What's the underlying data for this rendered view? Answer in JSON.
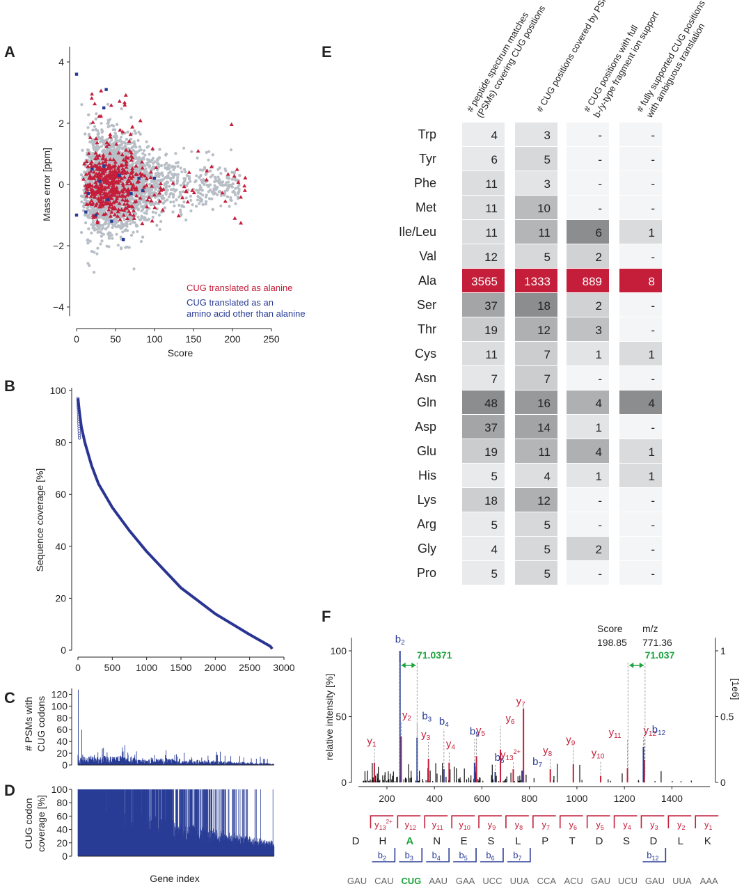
{
  "panels": {
    "A": "A",
    "B": "B",
    "C": "C",
    "D": "D",
    "E": "E",
    "F": "F"
  },
  "colors": {
    "grey_points": "#b8bec6",
    "alanine": "#c41e3a",
    "other": "#283c96",
    "blue_line": "#2a3593",
    "green": "#1aa33a",
    "red_line": "#c41e3a"
  },
  "chart_data": [
    {
      "id": "A",
      "type": "scatter",
      "xlabel": "Score",
      "ylabel": "Mass error [ppm]",
      "xlim": [
        0,
        250
      ],
      "ylim": [
        -4,
        4
      ],
      "xticks": [
        0,
        50,
        100,
        150,
        200,
        250
      ],
      "yticks": [
        -4,
        -2,
        0,
        2,
        4
      ],
      "legend": [
        "CUG translated as alanine",
        "CUG translated as an",
        "amino acid other than alanine"
      ],
      "legend_position": "bottom-right",
      "series": [
        {
          "name": "CUG translated as alanine",
          "marker": "triangle",
          "x_range": [
            5,
            225
          ],
          "y_range": [
            -2.0,
            3.3
          ],
          "approx_count": 500
        },
        {
          "name": "CUG translated as an amino acid other than alanine",
          "marker": "square",
          "points": [
            [
              0,
              3.6
            ],
            [
              35,
              2.5
            ],
            [
              38,
              3.1
            ],
            [
              0,
              -1.0
            ],
            [
              12,
              -0.9
            ],
            [
              25,
              -1.0
            ],
            [
              45,
              -1.2
            ],
            [
              20,
              0.5
            ],
            [
              35,
              0.6
            ],
            [
              55,
              0.3
            ],
            [
              70,
              -0.3
            ],
            [
              80,
              0.2
            ],
            [
              100,
              0.2
            ],
            [
              40,
              -0.5
            ],
            [
              15,
              -0.3
            ],
            [
              60,
              -1.8
            ],
            [
              30,
              0.1
            ],
            [
              85,
              -0.2
            ]
          ]
        },
        {
          "name": "all PSMs",
          "marker": "dot",
          "x_range": [
            0,
            270
          ],
          "y_range": [
            -4.3,
            4.4
          ],
          "approx_count": 3500
        }
      ]
    },
    {
      "id": "B",
      "type": "line",
      "xlabel": "",
      "ylabel": "Sequence coverage [%]",
      "xlim": [
        0,
        3000
      ],
      "ylim": [
        0,
        100
      ],
      "xticks": [
        0,
        500,
        1000,
        1500,
        2000,
        2500,
        3000
      ],
      "yticks": [
        0,
        20,
        40,
        60,
        80,
        100
      ],
      "x": [
        0,
        20,
        50,
        100,
        200,
        300,
        500,
        750,
        1000,
        1250,
        1500,
        1750,
        2000,
        2250,
        2500,
        2700,
        2800,
        2830
      ],
      "y": [
        97,
        92,
        86,
        80,
        71,
        64,
        55,
        46,
        38,
        31,
        24,
        19,
        14,
        10,
        6,
        3,
        1.5,
        0.5
      ]
    },
    {
      "id": "C",
      "type": "bar",
      "ylabel": "# PSMs with CUG codons",
      "ylim": [
        0,
        130
      ],
      "yticks": [
        0,
        20,
        40,
        60,
        80,
        100,
        120
      ],
      "n_genes": 2830,
      "notable_spikes": [
        [
          5,
          128
        ],
        [
          55,
          60
        ],
        [
          350,
          18
        ],
        [
          640,
          30
        ],
        [
          1270,
          25
        ],
        [
          2630,
          14
        ]
      ],
      "typical_range": [
        1,
        12
      ]
    },
    {
      "id": "D",
      "type": "bar",
      "xlabel": "Gene index",
      "ylabel": "CUG codon coverage [%]",
      "ylim": [
        0,
        100
      ],
      "yticks": [
        0,
        20,
        40,
        60,
        80,
        100
      ],
      "n_genes": 2830,
      "trend": "high (near 100%) at low gene index declining to ~10-20% at high gene index"
    },
    {
      "id": "E",
      "type": "table",
      "columns": [
        "# peptide spectrum matches (PSMs) covering CUG positions",
        "# CUG positions covered by PSMs",
        "# CUG positions with full b-/y-type fragment ion support",
        "# fully supported CUG positions with ambiguous translation"
      ],
      "header_lines": [
        [
          "# peptide spectrum matches",
          "(PSMs) covering CUG positions"
        ],
        [
          "# CUG positions covered by PSMs"
        ],
        [
          "# CUG positions with full",
          "b-/y-type fragment ion support"
        ],
        [
          "# fully supported CUG positions",
          "with ambiguous translation"
        ]
      ],
      "rows": [
        {
          "aa": "Trp",
          "v": [
            "4",
            "3",
            "-",
            "-"
          ]
        },
        {
          "aa": "Tyr",
          "v": [
            "6",
            "5",
            "-",
            "-"
          ]
        },
        {
          "aa": "Phe",
          "v": [
            "11",
            "3",
            "-",
            "-"
          ]
        },
        {
          "aa": "Met",
          "v": [
            "11",
            "10",
            "-",
            "-"
          ]
        },
        {
          "aa": "Ile/Leu",
          "v": [
            "11",
            "11",
            "6",
            "1"
          ]
        },
        {
          "aa": "Val",
          "v": [
            "12",
            "5",
            "2",
            "-"
          ]
        },
        {
          "aa": "Ala",
          "v": [
            "3565",
            "1333",
            "889",
            "8"
          ]
        },
        {
          "aa": "Ser",
          "v": [
            "37",
            "18",
            "2",
            "-"
          ]
        },
        {
          "aa": "Thr",
          "v": [
            "19",
            "12",
            "3",
            "-"
          ]
        },
        {
          "aa": "Cys",
          "v": [
            "11",
            "7",
            "1",
            "1"
          ]
        },
        {
          "aa": "Asn",
          "v": [
            "7",
            "7",
            "-",
            "-"
          ]
        },
        {
          "aa": "Gln",
          "v": [
            "48",
            "16",
            "4",
            "4"
          ]
        },
        {
          "aa": "Asp",
          "v": [
            "37",
            "14",
            "1",
            "-"
          ]
        },
        {
          "aa": "Glu",
          "v": [
            "19",
            "11",
            "4",
            "1"
          ]
        },
        {
          "aa": "His",
          "v": [
            "5",
            "4",
            "1",
            "1"
          ]
        },
        {
          "aa": "Lys",
          "v": [
            "18",
            "12",
            "-",
            "-"
          ]
        },
        {
          "aa": "Arg",
          "v": [
            "5",
            "5",
            "-",
            "-"
          ]
        },
        {
          "aa": "Gly",
          "v": [
            "4",
            "5",
            "2",
            "-"
          ]
        },
        {
          "aa": "Pro",
          "v": [
            "5",
            "5",
            "-",
            "-"
          ]
        }
      ]
    },
    {
      "id": "F",
      "type": "bar",
      "xlabel": "",
      "ylabel": "relative intensity [%]",
      "y2label": "[1e6]",
      "xlim": [
        80,
        1560
      ],
      "ylim": [
        0,
        110
      ],
      "xticks": [
        200,
        400,
        600,
        800,
        1000,
        1200,
        1400
      ],
      "yticks": [
        0,
        50,
        100
      ],
      "y2ticks": [
        {
          "label": "0",
          "y": 0
        },
        {
          "label": "0.5",
          "y": 50
        },
        {
          "label": "1",
          "y": 100
        }
      ],
      "score_label": "Score",
      "score": "198.85",
      "mz_label": "m/z",
      "mz": "771.36",
      "mass_diff_labels": [
        {
          "text": "71.0371",
          "x1": 255,
          "x2": 327,
          "y": 89
        },
        {
          "text": "71.037",
          "x1": 1215,
          "x2": 1287,
          "y": 89
        }
      ],
      "b_ions": [
        {
          "label": "b",
          "sub": "2",
          "x": 255,
          "y": 100
        },
        {
          "label": "b",
          "sub": "3",
          "x": 327,
          "y": 34
        },
        {
          "label": "b",
          "sub": "4",
          "x": 440,
          "y": 10
        },
        {
          "label": "b",
          "sub": "5",
          "x": 569,
          "y": 15
        },
        {
          "label": "b",
          "sub": "6",
          "x": 656,
          "y": 8
        },
        {
          "label": "b",
          "sub": "7",
          "x": 769,
          "y": 9
        },
        {
          "label": "b",
          "sub": "12",
          "x": 1280,
          "y": 27
        }
      ],
      "y_ions": [
        {
          "label": "y",
          "sub": "1",
          "x": 147,
          "y": 15
        },
        {
          "label": "y",
          "sub": "2",
          "x": 260,
          "y": 35
        },
        {
          "label": "y",
          "sub": "3",
          "x": 375,
          "y": 18
        },
        {
          "label": "y",
          "sub": "4",
          "x": 462,
          "y": 15
        },
        {
          "label": "y",
          "sub": "5",
          "x": 577,
          "y": 20
        },
        {
          "label": "y",
          "sub": "6",
          "x": 678,
          "y": 25
        },
        {
          "label": "y",
          "sub": "7",
          "x": 775,
          "y": 56
        },
        {
          "label": "y",
          "sub": "8",
          "x": 888,
          "y": 10
        },
        {
          "label": "y",
          "sub": "9",
          "x": 985,
          "y": 14
        },
        {
          "label": "y",
          "sub": "10",
          "x": 1100,
          "y": 5
        },
        {
          "label": "y",
          "sub": "11",
          "x": 1213,
          "y": 11
        },
        {
          "label": "y",
          "sub": "12",
          "x": 1284,
          "y": 17
        },
        {
          "label": "y",
          "sub": "13",
          "sup": "2+",
          "x": 732,
          "y": 10
        }
      ],
      "peptide": [
        "D",
        "H",
        "A",
        "N",
        "E",
        "S",
        "L",
        "P",
        "T",
        "D",
        "S",
        "D",
        "L",
        "K"
      ],
      "highlight_index": 2,
      "y_fragment_labels": [
        "y",
        "y",
        "y",
        "y",
        "y",
        "y",
        "y",
        "y",
        "y",
        "y",
        "y",
        "y",
        "y"
      ],
      "y_fragment_subs": [
        "13",
        "12",
        "11",
        "10",
        "9",
        "8",
        "7",
        "6",
        "5",
        "4",
        "3",
        "2",
        "1"
      ],
      "y_fragment_sups": [
        "2+",
        "",
        "",
        "",
        "",
        "",
        "",
        "",
        "",
        "",
        "",
        "",
        ""
      ],
      "b_fragment_subs": [
        "2",
        "3",
        "4",
        "5",
        "6",
        "7",
        "",
        "",
        "",
        "",
        "12",
        "",
        ""
      ],
      "codons": [
        "GAU",
        "CAU",
        "CUG",
        "AAU",
        "GAA",
        "UCC",
        "UUA",
        "CCA",
        "ACU",
        "GAU",
        "UCU",
        "GAU",
        "UUA",
        "AAA"
      ]
    }
  ]
}
